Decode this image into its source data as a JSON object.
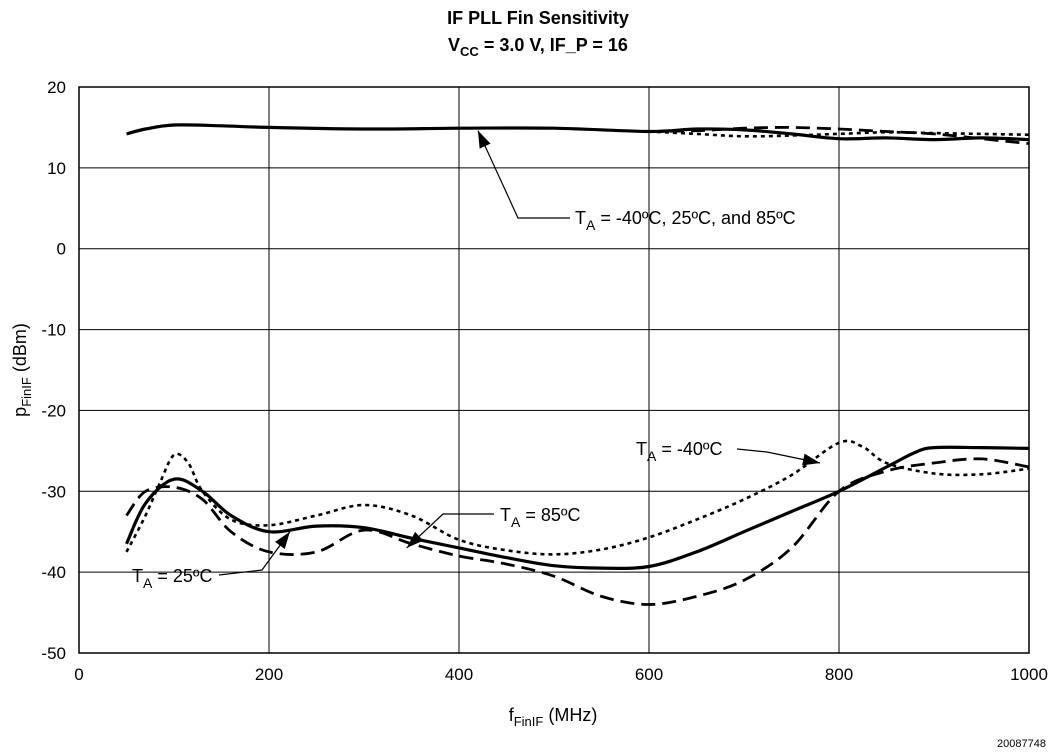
{
  "chart_data": {
    "type": "line",
    "title": {
      "line1": "IF PLL Fin Sensitivity",
      "line2_v": "V",
      "line2_sub": "CC",
      "line2_rest": " = 3.0 V, IF_P = 16"
    },
    "xlabel": {
      "main": "f",
      "sub": "FinIF",
      "unit": " (MHz)"
    },
    "ylabel": {
      "main": "p",
      "sub": "FinIF",
      "unit": " (dBm)"
    },
    "xlim": [
      0,
      1000
    ],
    "ylim": [
      -50,
      20
    ],
    "xticks": [
      0,
      200,
      400,
      600,
      800,
      1000
    ],
    "yticks": [
      20,
      10,
      0,
      -10,
      -20,
      -30,
      -40,
      -50
    ],
    "grid": true,
    "figure_number": "20087748",
    "series": [
      {
        "group": "upper",
        "style": "solid",
        "x": [
          50,
          70,
          100,
          150,
          200,
          300,
          400,
          500,
          600,
          650,
          700,
          750,
          800,
          850,
          900,
          950,
          1000
        ],
        "y": [
          14.2,
          14.8,
          15.3,
          15.2,
          15.0,
          14.8,
          14.9,
          14.9,
          14.5,
          14.8,
          14.7,
          14.2,
          13.6,
          13.7,
          13.5,
          13.7,
          13.5
        ]
      },
      {
        "group": "upper",
        "style": "dashed",
        "x": [
          600,
          650,
          700,
          750,
          800,
          850,
          900,
          950,
          1000
        ],
        "y": [
          14.5,
          14.6,
          14.9,
          15.0,
          14.8,
          14.5,
          14.2,
          13.6,
          13.0
        ]
      },
      {
        "group": "upper",
        "style": "dotted",
        "x": [
          600,
          650,
          700,
          750,
          800,
          850,
          900,
          950,
          1000
        ],
        "y": [
          14.5,
          14.2,
          13.9,
          14.0,
          14.2,
          14.4,
          14.3,
          14.2,
          14.1
        ]
      },
      {
        "name": "T_A = 85°C",
        "style": "solid",
        "x": [
          50,
          70,
          100,
          130,
          160,
          200,
          250,
          300,
          350,
          400,
          450,
          500,
          550,
          600,
          650,
          700,
          750,
          800,
          850,
          880,
          900,
          950,
          1000
        ],
        "y": [
          -36.5,
          -31.5,
          -28.5,
          -30.0,
          -33.0,
          -35.0,
          -34.3,
          -34.5,
          -35.8,
          -37.0,
          -38.2,
          -39.2,
          -39.5,
          -39.3,
          -37.5,
          -35.0,
          -32.5,
          -30.0,
          -27.0,
          -25.2,
          -24.6,
          -24.6,
          -24.7
        ]
      },
      {
        "name": "T_A = 25°C",
        "style": "dashed",
        "x": [
          50,
          70,
          100,
          130,
          160,
          200,
          250,
          300,
          350,
          400,
          450,
          500,
          550,
          600,
          650,
          700,
          750,
          800,
          850,
          900,
          950,
          1000
        ],
        "y": [
          -33.0,
          -30.0,
          -29.5,
          -31.0,
          -35.0,
          -37.5,
          -37.5,
          -34.8,
          -36.5,
          -38.0,
          -39.0,
          -40.5,
          -43.0,
          -44.0,
          -43.0,
          -41.0,
          -37.0,
          -30.0,
          -27.5,
          -26.5,
          -26.0,
          -27.0
        ]
      },
      {
        "name": "T_A = -40°C",
        "style": "dotted",
        "x": [
          50,
          70,
          85,
          100,
          115,
          130,
          160,
          200,
          250,
          300,
          350,
          400,
          450,
          500,
          550,
          600,
          650,
          700,
          750,
          800,
          825,
          850,
          900,
          950,
          1000
        ],
        "y": [
          -37.5,
          -33.0,
          -29.0,
          -25.5,
          -26.5,
          -30.0,
          -33.5,
          -34.2,
          -33.0,
          -31.7,
          -33.0,
          -36.0,
          -37.3,
          -37.8,
          -37.2,
          -35.7,
          -33.5,
          -31.0,
          -28.0,
          -24.0,
          -24.5,
          -26.5,
          -27.8,
          -27.9,
          -27.2
        ]
      }
    ],
    "annotations": [
      {
        "id": "all",
        "main": "T",
        "sub": "A",
        "rest": " = -40ºC, 25ºC,  and 85ºC",
        "target": [
          420,
          14.6
        ]
      },
      {
        "id": "t40",
        "main": "T",
        "sub": "A",
        "rest": " = -40ºC",
        "target": [
          780,
          -26.5
        ]
      },
      {
        "id": "t85",
        "main": "T",
        "sub": "A",
        "rest": " = 85ºC",
        "target": [
          345,
          -37.0
        ]
      },
      {
        "id": "t25",
        "main": "T",
        "sub": "A",
        "rest": " = 25ºC",
        "target": [
          222,
          -35.0
        ]
      }
    ]
  }
}
